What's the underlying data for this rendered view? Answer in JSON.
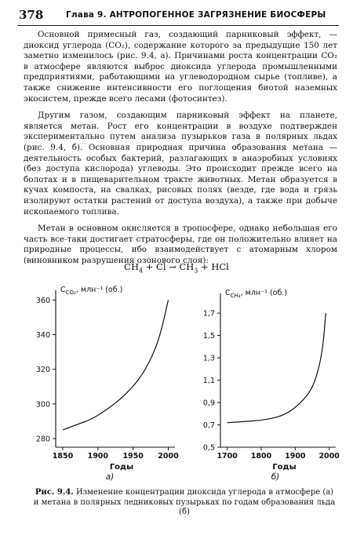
{
  "header": {
    "page_number": "378",
    "running_title": "Глава 9. АНТРОПОГЕННОЕ ЗАГРЯЗНЕНИЕ БИОСФЕРЫ"
  },
  "paragraphs": [
    "Основной примесный газ, создающий парниковый эффект, — диоксид углерода (CO₂), содержание которого за предыдущие 150 лет заметно изменилось (рис. 9.4, а). Причинами роста концентрации CO₂ в атмосфере являются выброс диоксида углерода промышленными предприятиями, работающими на углеводородном сырье (топливе), а также снижение интенсивности его поглощения биотой наземных экосистем, прежде всего лесами (фотосинтез).",
    "Другим газом, создающим парниковый эффект на планете, является метан. Рост его концентрации в воздухе подтвержден экспериментально путем анализа пузырьков газа в полярных льдах (рис. 9.4, б). Основная природная причина образования метана — деятельность особых бактерий, разлагающих в анаэробных условиях (без доступа кислорода) углеводы. Это происходит прежде всего на болотах и в пищеварительном тракте животных. Метан образуется в кучах компоста, на свалках, рисовых полях (везде, где вода и грязь изолируют остатки растений от доступа воздуха), а также при добыче ископаемого топлива.",
    "Метан в основном окисляется в тропосфере, однако небольшая его часть все-таки достигает стратосферы, где он положительно влияет на природные процессы, ибо взаимодействует с атомарным хлором (виновником разрушения озонового слоя):"
  ],
  "equation": {
    "reactant1": "CH",
    "reactant1_sub": "4",
    "plus1": "+",
    "reactant2": "Cl",
    "arrow": "→",
    "product1": "CH",
    "product1_sub": "3",
    "plus2": "+",
    "product2": "HCl"
  },
  "chart_data": [
    {
      "type": "line",
      "panel_label": "а)",
      "ylabel": "C",
      "ylabel_sub": "CO₂",
      "ylabel_unit": ", млн⁻¹ (об.)",
      "xlabel": "Годы",
      "x_ticks": [
        "1850",
        "1900",
        "1950",
        "2000"
      ],
      "x_tick_values": [
        1850,
        1900,
        1950,
        2000
      ],
      "y_ticks": [
        "280",
        "300",
        "320",
        "340",
        "360"
      ],
      "y_tick_values": [
        280,
        300,
        320,
        340,
        360
      ],
      "xlim": [
        1840,
        2005
      ],
      "ylim": [
        275,
        362
      ],
      "x": [
        1850,
        1870,
        1890,
        1910,
        1930,
        1950,
        1965,
        1980,
        1990,
        2000
      ],
      "y": [
        285,
        288,
        291,
        296,
        302,
        310,
        318,
        330,
        342,
        360
      ]
    },
    {
      "type": "line",
      "panel_label": "б)",
      "ylabel": "C",
      "ylabel_sub": "CH₄",
      "ylabel_unit": ", млн⁻¹ (об.)",
      "xlabel": "Годы",
      "x_ticks": [
        "1700",
        "1800",
        "1900",
        "2000"
      ],
      "x_tick_values": [
        1700,
        1800,
        1900,
        2000
      ],
      "y_ticks": [
        "0,5",
        "0,7",
        "0,9",
        "1,1",
        "1,3",
        "1,5",
        "1,7"
      ],
      "y_tick_values": [
        0.5,
        0.7,
        0.9,
        1.1,
        1.3,
        1.5,
        1.7
      ],
      "xlim": [
        1680,
        2010
      ],
      "ylim": [
        0.5,
        1.82
      ],
      "x": [
        1700,
        1750,
        1800,
        1850,
        1880,
        1910,
        1940,
        1960,
        1980,
        1990
      ],
      "y": [
        0.72,
        0.73,
        0.74,
        0.77,
        0.81,
        0.88,
        0.98,
        1.1,
        1.35,
        1.7
      ]
    }
  ],
  "caption": {
    "label": "Рис. 9.4.",
    "text": "Изменение концентрации диоксида углерода в атмосфере (а) и метана в полярных ледниковых пузырьках по годам образования льда (б)"
  }
}
